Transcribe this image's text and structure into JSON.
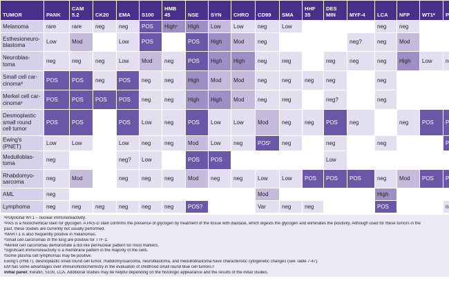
{
  "table": {
    "headers": [
      {
        "id": "tumor",
        "label": "TUMOR"
      },
      {
        "id": "pank",
        "label": "PANK"
      },
      {
        "id": "cam52",
        "label": "CAM\n5.2"
      },
      {
        "id": "ck20",
        "label": "CK20"
      },
      {
        "id": "ema",
        "label": "EMA"
      },
      {
        "id": "s100",
        "label": "S100"
      },
      {
        "id": "hmb45",
        "label": "HMB\n45"
      },
      {
        "id": "nse",
        "label": "NSE"
      },
      {
        "id": "syn",
        "label": "SYN"
      },
      {
        "id": "chro",
        "label": "CHRO"
      },
      {
        "id": "cd99",
        "label": "CD99"
      },
      {
        "id": "sma",
        "label": "SMA"
      },
      {
        "id": "hhf35",
        "label": "HHF\n35"
      },
      {
        "id": "desmin",
        "label": "DES\nMIN"
      },
      {
        "id": "myf4",
        "label": "MYF-4"
      },
      {
        "id": "lca",
        "label": "LCA"
      },
      {
        "id": "nfp",
        "label": "NFP"
      },
      {
        "id": "wt1",
        "label": "WT1ᵃ"
      },
      {
        "id": "pas",
        "label": "PASᵇ"
      }
    ],
    "rows": [
      {
        "tumor": "Melanoma",
        "cells": [
          [
            "rare",
            "l"
          ],
          [
            "rare",
            "l"
          ],
          [
            "neg",
            "l"
          ],
          [
            "neg",
            "l"
          ],
          [
            "POS",
            "d"
          ],
          [
            "Highᶜ",
            "h"
          ],
          [
            "High",
            "h"
          ],
          [
            "Low",
            "m"
          ],
          [
            "Low",
            "l"
          ],
          [
            "neg",
            "l"
          ],
          [
            "Low",
            "l"
          ],
          [
            "",
            ""
          ],
          [
            "",
            ""
          ],
          [
            "",
            ""
          ],
          [
            "neg",
            "l"
          ],
          [
            "neg",
            "l"
          ],
          [
            "",
            ""
          ],
          [
            "",
            ""
          ]
        ]
      },
      {
        "tumor": "Esthesioneuro-\nblastoma",
        "cells": [
          [
            "Low",
            "l"
          ],
          [
            "Mod",
            "m"
          ],
          [
            "",
            ""
          ],
          [
            "Low",
            "l"
          ],
          [
            "POS",
            "d"
          ],
          [
            "",
            ""
          ],
          [
            "POS",
            "d"
          ],
          [
            "High",
            "h"
          ],
          [
            "Mod",
            "m"
          ],
          [
            "neg",
            "l"
          ],
          [
            "",
            ""
          ],
          [
            "",
            ""
          ],
          [
            "",
            ""
          ],
          [
            "neg?",
            "l"
          ],
          [
            "neg",
            "l"
          ],
          [
            "Mod",
            "m"
          ],
          [
            "",
            ""
          ],
          [
            "",
            ""
          ]
        ]
      },
      {
        "tumor": "Neuroblas-\ntoma",
        "cells": [
          [
            "neg",
            "l"
          ],
          [
            "neg",
            "l"
          ],
          [
            "neg",
            "l"
          ],
          [
            "Low",
            "l"
          ],
          [
            "Mod",
            "m"
          ],
          [
            "neg",
            "l"
          ],
          [
            "POS",
            "d"
          ],
          [
            "High",
            "h"
          ],
          [
            "High",
            "h"
          ],
          [
            "neg",
            "l"
          ],
          [
            "neg",
            "l"
          ],
          [
            "",
            ""
          ],
          [
            "neg",
            "l"
          ],
          [
            "neg",
            "l"
          ],
          [
            "neg",
            "l"
          ],
          [
            "High",
            "h"
          ],
          [
            "Low",
            "l"
          ],
          [
            "neg",
            "l"
          ]
        ]
      },
      {
        "tumor": "Small cell car-\ncinomaᵈ",
        "cells": [
          [
            "POS",
            "d"
          ],
          [
            "POS",
            "d"
          ],
          [
            "neg",
            "l"
          ],
          [
            "POS",
            "d"
          ],
          [
            "neg",
            "l"
          ],
          [
            "neg",
            "l"
          ],
          [
            "High",
            "h"
          ],
          [
            "Mod",
            "m"
          ],
          [
            "Mod",
            "m"
          ],
          [
            "neg",
            "l"
          ],
          [
            "neg",
            "l"
          ],
          [
            "neg",
            "l"
          ],
          [
            "neg",
            "l"
          ],
          [
            "",
            ""
          ],
          [
            "neg",
            "l"
          ],
          [
            "",
            ""
          ],
          [
            "",
            ""
          ],
          [
            "",
            ""
          ]
        ]
      },
      {
        "tumor": "Merkel cell car-\ncinomaᵉ",
        "cells": [
          [
            "POS",
            "d"
          ],
          [
            "POS",
            "d"
          ],
          [
            "POS",
            "d"
          ],
          [
            "POS",
            "d"
          ],
          [
            "neg",
            "l"
          ],
          [
            "neg",
            "l"
          ],
          [
            "High",
            "h"
          ],
          [
            "High",
            "h"
          ],
          [
            "Mod",
            "m"
          ],
          [
            "neg",
            "l"
          ],
          [
            "neg",
            "l"
          ],
          [
            "",
            ""
          ],
          [
            "neg?",
            "l"
          ],
          [
            "",
            ""
          ],
          [
            "neg",
            "l"
          ],
          [
            "",
            ""
          ],
          [
            "",
            ""
          ],
          [
            "",
            ""
          ]
        ]
      },
      {
        "tumor": "Desmoplastic\nsmall round\ncell tumor",
        "cells": [
          [
            "POS",
            "d"
          ],
          [
            "POS",
            "d"
          ],
          [
            "",
            ""
          ],
          [
            "POS",
            "d"
          ],
          [
            "Low",
            "l"
          ],
          [
            "neg",
            "l"
          ],
          [
            "POS",
            "d"
          ],
          [
            "Low",
            "l"
          ],
          [
            "Low",
            "l"
          ],
          [
            "Mod",
            "m"
          ],
          [
            "neg",
            "l"
          ],
          [
            "neg",
            "l"
          ],
          [
            "POS",
            "d"
          ],
          [
            "neg",
            "l"
          ],
          [
            "",
            ""
          ],
          [
            "neg",
            "l"
          ],
          [
            "POS",
            "d"
          ],
          [
            "POS",
            "d"
          ]
        ]
      },
      {
        "tumor": "Ewing's (PNET)",
        "cells": [
          [
            "Low",
            "l"
          ],
          [
            "Low",
            "l"
          ],
          [
            "",
            ""
          ],
          [
            "Low",
            "l"
          ],
          [
            "neg",
            "l"
          ],
          [
            "neg",
            "l"
          ],
          [
            "Mod",
            "m"
          ],
          [
            "Low",
            "l"
          ],
          [
            "neg",
            "l"
          ],
          [
            "POSᶠ",
            "d"
          ],
          [
            "neg",
            "l"
          ],
          [
            "",
            ""
          ],
          [
            "neg",
            "l"
          ],
          [
            "",
            ""
          ],
          [
            "neg",
            "l"
          ],
          [
            "",
            ""
          ],
          [
            "",
            ""
          ],
          [
            "POS",
            "d"
          ]
        ]
      },
      {
        "tumor": "Medulloblas-\ntoma",
        "cells": [
          [
            "neg",
            "l"
          ],
          [
            "",
            ""
          ],
          [
            "",
            ""
          ],
          [
            "neg?",
            "l"
          ],
          [
            "Low",
            "l"
          ],
          [
            "",
            ""
          ],
          [
            "POS",
            "d"
          ],
          [
            "POS",
            "d"
          ],
          [
            "",
            ""
          ],
          [
            "",
            ""
          ],
          [
            "",
            ""
          ],
          [
            "",
            ""
          ],
          [
            "Low",
            "l"
          ],
          [
            "",
            ""
          ],
          [
            "",
            ""
          ],
          [
            "",
            ""
          ],
          [
            "",
            ""
          ],
          [
            "",
            ""
          ]
        ]
      },
      {
        "tumor": "Rhabdomyo-\nsarcoma",
        "cells": [
          [
            "neg",
            "l"
          ],
          [
            "Mod",
            "m"
          ],
          [
            "",
            ""
          ],
          [
            "neg",
            "l"
          ],
          [
            "neg",
            "l"
          ],
          [
            "neg",
            "l"
          ],
          [
            "Mod",
            "m"
          ],
          [
            "neg",
            "l"
          ],
          [
            "neg",
            "l"
          ],
          [
            "Low",
            "l"
          ],
          [
            "Low",
            "l"
          ],
          [
            "POS",
            "d"
          ],
          [
            "POS",
            "d"
          ],
          [
            "POS",
            "d"
          ],
          [
            "neg",
            "l"
          ],
          [
            "Mod",
            "m"
          ],
          [
            "POS",
            "d"
          ],
          [
            "POS",
            "d"
          ]
        ]
      },
      {
        "tumor": "AML",
        "cells": [
          [
            "neg",
            "l"
          ],
          [
            "",
            ""
          ],
          [
            "",
            ""
          ],
          [
            "",
            ""
          ],
          [
            "",
            ""
          ],
          [
            "",
            ""
          ],
          [
            "",
            ""
          ],
          [
            "",
            ""
          ],
          [
            "",
            ""
          ],
          [
            "Mod",
            "m"
          ],
          [
            "",
            ""
          ],
          [
            "",
            ""
          ],
          [
            "",
            ""
          ],
          [
            "",
            ""
          ],
          [
            "High",
            "h"
          ],
          [
            "",
            ""
          ],
          [
            "",
            ""
          ],
          [
            "",
            ""
          ]
        ]
      },
      {
        "tumor": "Lymphoma",
        "cells": [
          [
            "neg",
            "l"
          ],
          [
            "neg",
            "l"
          ],
          [
            "neg",
            "l"
          ],
          [
            "neg",
            "l"
          ],
          [
            "neg",
            "l"
          ],
          [
            "neg",
            "l"
          ],
          [
            "POS?",
            "d"
          ],
          [
            "",
            ""
          ],
          [
            "",
            ""
          ],
          [
            "Var",
            "l"
          ],
          [
            "neg",
            "l"
          ],
          [
            "neg",
            "l"
          ],
          [
            "",
            ""
          ],
          [
            "",
            ""
          ],
          [
            "POS",
            "d"
          ],
          [
            "",
            ""
          ],
          [
            "",
            ""
          ],
          [
            "negᵍ",
            "l"
          ]
        ]
      }
    ]
  },
  "footnotes": {
    "lines": [
      "ᵃPolyclonal WT1 – nuclear immunoreactivity.",
      "ᵇPAS is a histochemical stain for glycogen. A PAS-D stain confirms the presence of glycogen by treatment of the tissue with diastase, which digests the glycogen and eliminates the positivity. Although used for these tumors in the",
      "past, these studies are currently not usually performed.",
      "ᶜMART-1 is also frequently positive in melanomas.",
      "ᵈSmall cell carcinomas of the lung are positive for TTF-1.",
      "ᵉMerkel cell carcinomas demonstrate a dot like perinuclear pattern for most markers.",
      "ᶠSignificant immunoreactivity is a membrane pattern in the majority of the cells.",
      "ᵍSome plasma cell lymphomas may be positive.",
      "Ewing's (PNET), desmoplastic small round cell tumor, rhabdomyosarcoma, neuroblastoma, and medulloblastoma have characteristic cytogenetic changes (see Table 7-47).",
      "EM has some advantages over immunohistochemistry in the evaluation of childhood small round blue cell tumors.ᵍ"
    ],
    "initial_panel_label": "Initial panel:",
    "initial_panel_text": " Keratin, S100, LCA. Additional studies may be helpful depending on the histologic appearance and the results of the initial studies."
  }
}
